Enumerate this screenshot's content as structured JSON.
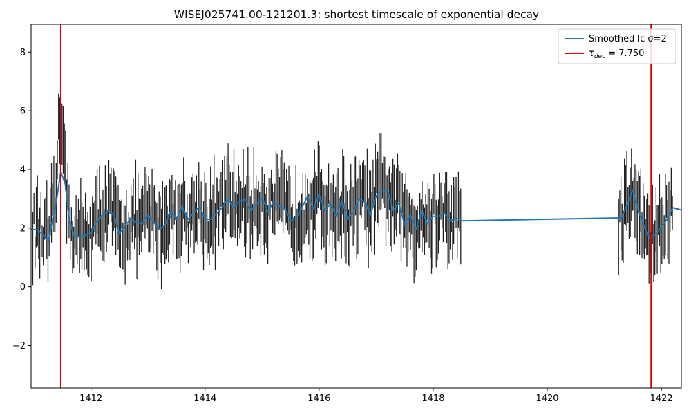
{
  "chart_data": {
    "type": "line",
    "title": "WISEJ025741.00-121201.3: shortest timescale of exponential decay",
    "xlabel": "",
    "ylabel": "",
    "xlim": [
      1410.95,
      1422.35
    ],
    "ylim": [
      -3.45,
      8.95
    ],
    "xticks": [
      1412,
      1414,
      1416,
      1418,
      1420,
      1422
    ],
    "yticks": [
      -2,
      0,
      2,
      4,
      6,
      8
    ],
    "ytick_labels": [
      "−2",
      "0",
      "2",
      "4",
      "6",
      "8"
    ],
    "grid": false,
    "legend_position": "top-right",
    "legend": {
      "smoothed_label": "Smoothed lc σ=2",
      "tau_symbol": "τ",
      "tau_sub": "dec",
      "tau_value": " = 7.750"
    },
    "colors": {
      "smoothed": "#1f77b4",
      "vline": "#e00000",
      "errorbar": "#222222"
    },
    "vlines": [
      1411.47,
      1421.82
    ],
    "smoothed_series": {
      "name": "Smoothed lc σ=2",
      "x": [
        1410.95,
        1411.05,
        1411.15,
        1411.25,
        1411.32,
        1411.4,
        1411.47,
        1411.55,
        1411.62,
        1411.7,
        1411.8,
        1411.9,
        1412.0,
        1412.1,
        1412.2,
        1412.3,
        1412.4,
        1412.5,
        1412.6,
        1412.7,
        1412.8,
        1412.9,
        1413.0,
        1413.1,
        1413.2,
        1413.3,
        1413.4,
        1413.5,
        1413.6,
        1413.7,
        1413.8,
        1413.9,
        1414.0,
        1414.1,
        1414.2,
        1414.3,
        1414.4,
        1414.5,
        1414.6,
        1414.7,
        1414.8,
        1414.9,
        1415.0,
        1415.1,
        1415.2,
        1415.3,
        1415.4,
        1415.5,
        1415.6,
        1415.7,
        1415.8,
        1415.9,
        1416.0,
        1416.1,
        1416.2,
        1416.3,
        1416.4,
        1416.5,
        1416.6,
        1416.7,
        1416.8,
        1416.9,
        1417.0,
        1417.1,
        1417.2,
        1417.3,
        1417.4,
        1417.5,
        1417.6,
        1417.7,
        1417.8,
        1417.9,
        1418.0,
        1418.1,
        1418.2,
        1418.3,
        1418.4,
        1418.5,
        1421.3,
        1421.4,
        1421.5,
        1421.6,
        1421.7,
        1421.8,
        1421.9,
        1422.0,
        1422.1,
        1422.2,
        1422.35
      ],
      "y": [
        1.95,
        1.95,
        1.8,
        1.55,
        2.2,
        3.0,
        3.92,
        3.5,
        2.3,
        1.75,
        1.7,
        1.75,
        1.85,
        2.2,
        2.45,
        2.6,
        2.45,
        1.8,
        2.1,
        2.3,
        2.2,
        2.15,
        2.45,
        2.2,
        1.95,
        2.1,
        2.6,
        2.3,
        2.75,
        2.3,
        2.5,
        2.75,
        2.3,
        2.3,
        2.5,
        2.7,
        3.0,
        2.7,
        2.9,
        3.0,
        2.6,
        2.8,
        3.05,
        2.55,
        2.9,
        2.75,
        2.65,
        2.25,
        2.35,
        2.7,
        3.1,
        2.65,
        3.15,
        2.6,
        2.85,
        2.4,
        2.95,
        2.3,
        2.55,
        3.0,
        2.9,
        2.45,
        3.1,
        3.25,
        3.3,
        2.6,
        2.85,
        2.1,
        2.45,
        1.95,
        2.6,
        2.15,
        2.4,
        2.4,
        2.5,
        2.25,
        2.35,
        2.25,
        2.35,
        2.8,
        3.3,
        2.6,
        2.05,
        1.65,
        1.8,
        2.05,
        2.3,
        2.7,
        2.62
      ]
    }
  }
}
